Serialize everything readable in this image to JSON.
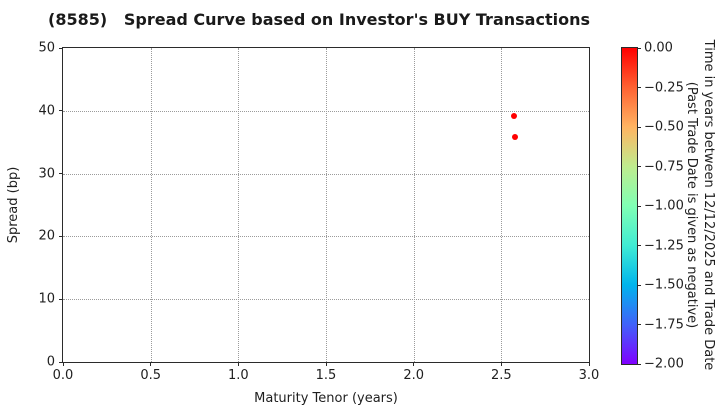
{
  "title": "(8585)   Spread Curve based on Investor's BUY Transactions",
  "chart_data": {
    "type": "scatter",
    "title": "(8585)   Spread Curve based on Investor's BUY Transactions",
    "xlabel": "Maturity Tenor (years)",
    "ylabel": "Spread (bp)",
    "xlim": [
      0.0,
      3.0
    ],
    "ylim": [
      0,
      50
    ],
    "grid": true,
    "grid_style": "dotted",
    "xticks": [
      {
        "v": 0.0,
        "label": "0.0"
      },
      {
        "v": 0.5,
        "label": "0.5"
      },
      {
        "v": 1.0,
        "label": "1.0"
      },
      {
        "v": 1.5,
        "label": "1.5"
      },
      {
        "v": 2.0,
        "label": "2.0"
      },
      {
        "v": 2.5,
        "label": "2.5"
      },
      {
        "v": 3.0,
        "label": "3.0"
      }
    ],
    "yticks": [
      {
        "v": 0,
        "label": "0"
      },
      {
        "v": 10,
        "label": "10"
      },
      {
        "v": 20,
        "label": "20"
      },
      {
        "v": 30,
        "label": "30"
      },
      {
        "v": 40,
        "label": "40"
      },
      {
        "v": 50,
        "label": "50"
      }
    ],
    "points": [
      {
        "x": 2.57,
        "y": 39.1,
        "color_value": 0.0,
        "color": "#ff0000"
      },
      {
        "x": 2.58,
        "y": 35.8,
        "color_value": 0.0,
        "color": "#ff0000"
      }
    ],
    "colorbar": {
      "label_line1": "Time in years between 12/12/2025 and Trade Date",
      "label_line2": "(Past Trade Date is given as negative)",
      "range_top": 0.0,
      "range_bottom": -2.0,
      "colormap": "rainbow",
      "gradient_stops": [
        "#ff0000",
        "#ff6232",
        "#ffb462",
        "#bfec8e",
        "#80ffb4",
        "#40ecd4",
        "#00b4ec",
        "#4062fa",
        "#8000ff"
      ],
      "ticks": [
        {
          "v": 0.0,
          "label": "0.00"
        },
        {
          "v": -0.25,
          "label": "−0.25"
        },
        {
          "v": -0.5,
          "label": "−0.50"
        },
        {
          "v": -0.75,
          "label": "−0.75"
        },
        {
          "v": -1.0,
          "label": "−1.00"
        },
        {
          "v": -1.25,
          "label": "−1.25"
        },
        {
          "v": -1.5,
          "label": "−1.50"
        },
        {
          "v": -1.75,
          "label": "−1.75"
        },
        {
          "v": -2.0,
          "label": "−2.00"
        }
      ]
    }
  }
}
